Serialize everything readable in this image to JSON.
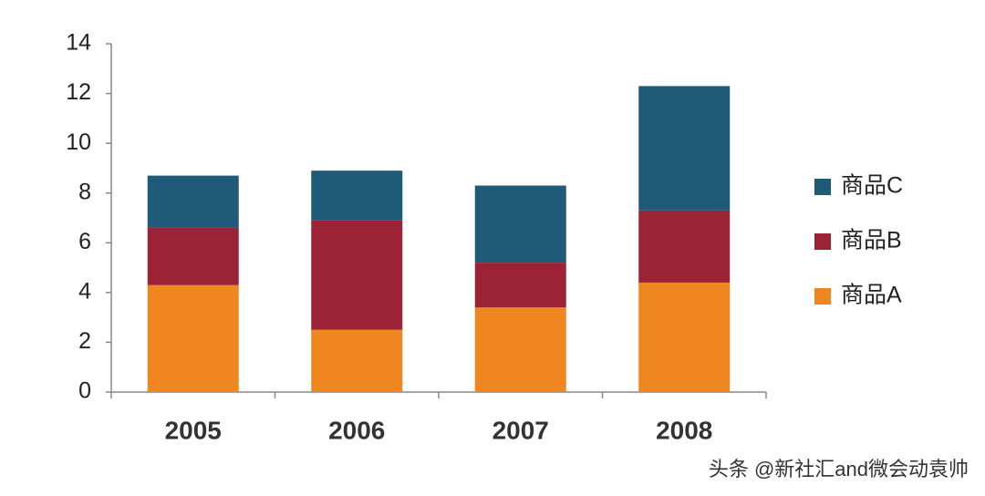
{
  "chart_data": {
    "type": "stacked_bar",
    "categories": [
      "2005",
      "2006",
      "2007",
      "2008"
    ],
    "series": [
      {
        "name": "商品A",
        "color": "#f0861f",
        "values": [
          4.3,
          2.5,
          3.4,
          4.4
        ]
      },
      {
        "name": "商品B",
        "color": "#9b2335",
        "values": [
          2.3,
          4.4,
          1.8,
          2.9
        ]
      },
      {
        "name": "商品C",
        "color": "#1f5a78",
        "values": [
          2.1,
          2.0,
          3.1,
          5.0
        ]
      }
    ],
    "ylim": [
      0,
      14
    ],
    "yticks": [
      0,
      2,
      4,
      6,
      8,
      10,
      12,
      14
    ],
    "grid": false,
    "legend": "right",
    "watermark": "头条 @新社汇and微会动袁帅"
  }
}
